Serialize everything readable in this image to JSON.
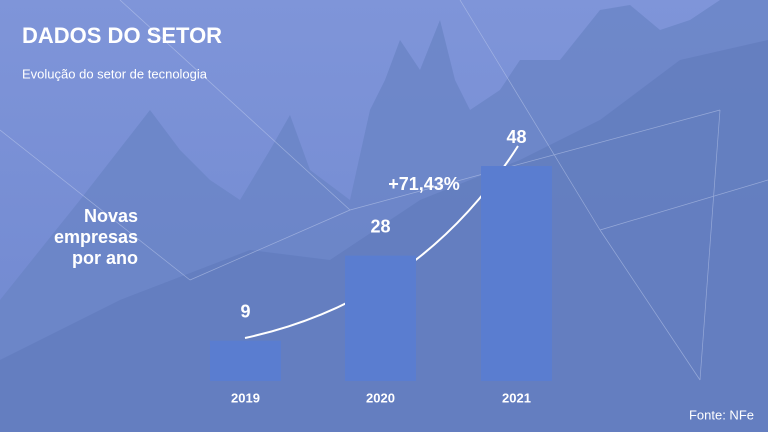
{
  "chart_data": {
    "type": "bar",
    "title": "DADOS DO SETOR",
    "subtitle": "Evolução do setor de tecnologia",
    "y_label": "Novas empresas por ano",
    "categories": [
      "2019",
      "2020",
      "2021"
    ],
    "values": [
      9,
      28,
      48
    ],
    "color": "#5a7dd0",
    "annotation": "+71,43%",
    "source": "Fonte: NFe"
  }
}
